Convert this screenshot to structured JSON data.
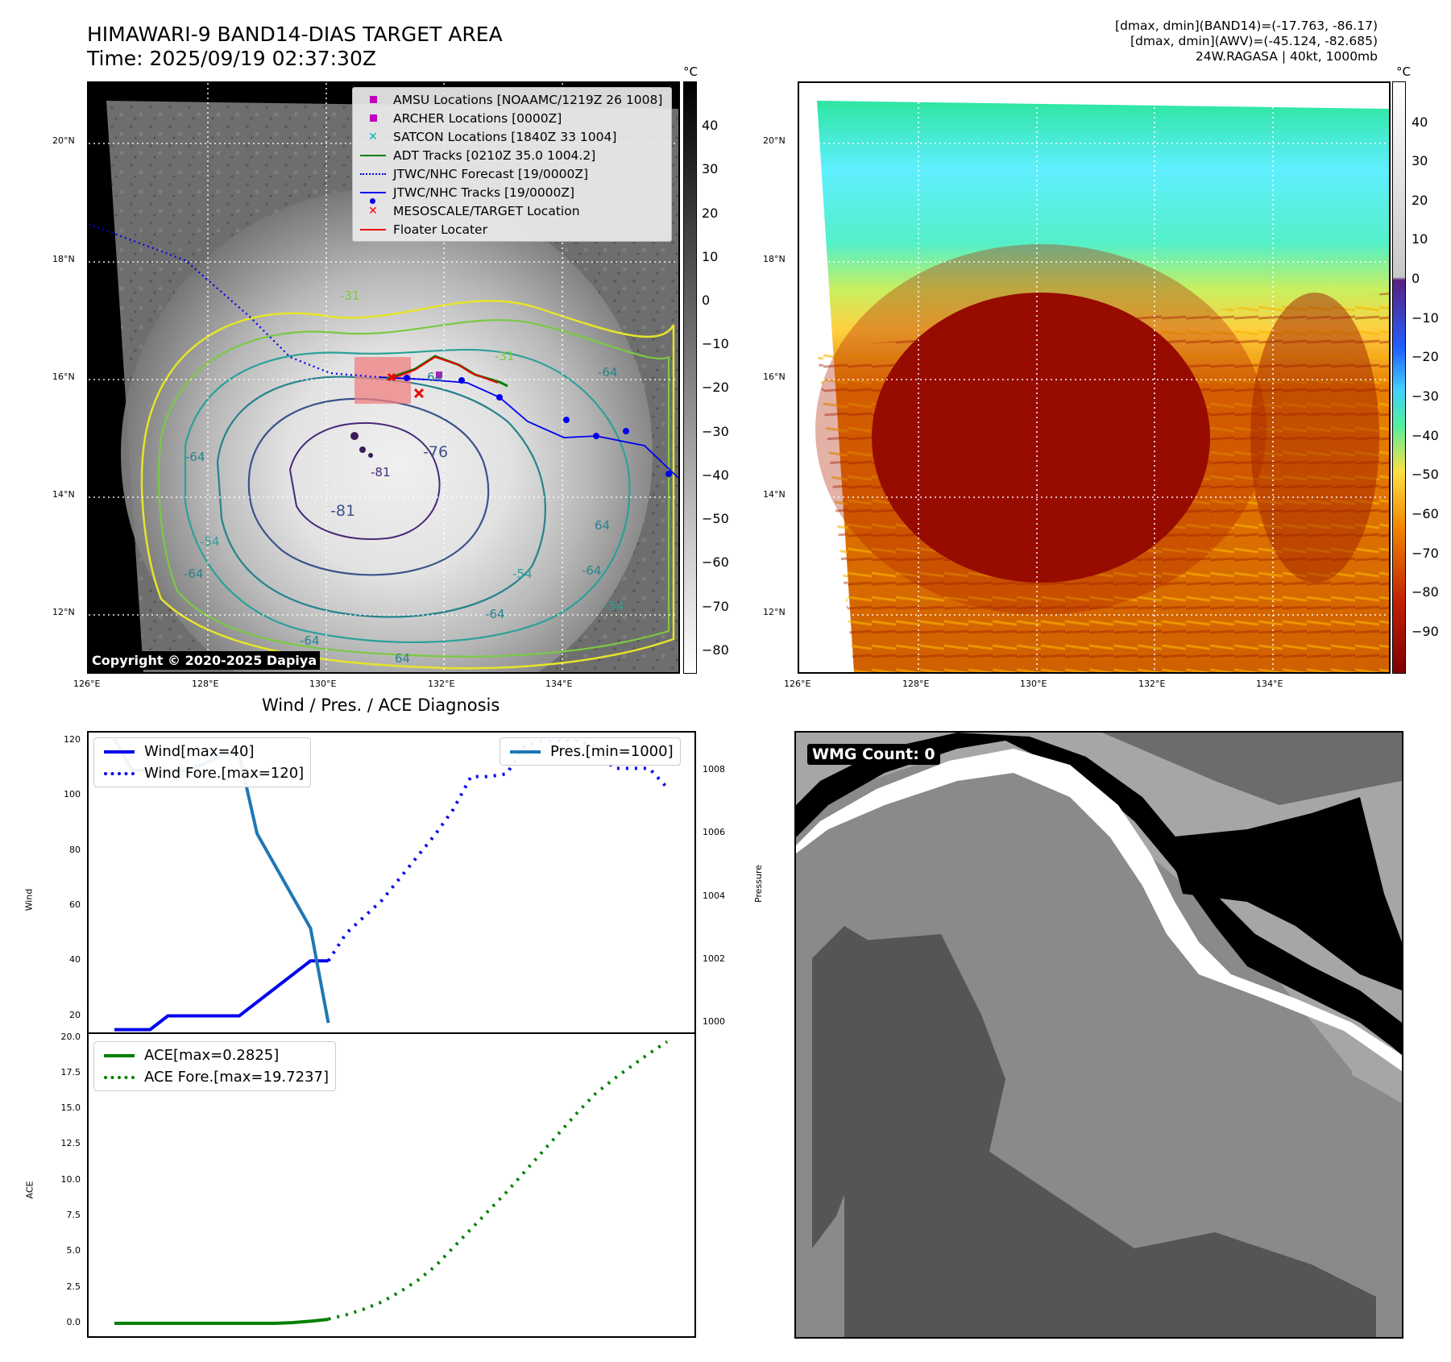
{
  "header": {
    "title_line1": "HIMAWARI-9 BAND14-DIAS TARGET AREA",
    "title_line2": "Time: 2025/09/19 02:37:30Z",
    "stats_line1": "[dmax, dmin](BAND14)=(-17.763, -86.17)",
    "stats_line2": "[dmax, dmin](AWV)=(-45.124, -82.685)",
    "stats_line3": "24W.RAGASA | 40kt, 1000mb"
  },
  "map": {
    "lon_ticks": [
      "126°E",
      "128°E",
      "130°E",
      "132°E",
      "134°E"
    ],
    "lat_ticks": [
      "20°N",
      "18°N",
      "16°N",
      "14°N",
      "12°N"
    ],
    "copyright": "Copyright © 2020-2025 Dapiya",
    "contour_labels": [
      "-76",
      "-81",
      "-81",
      "-64",
      "-64",
      "64",
      "-54",
      "-64",
      "64",
      "-64",
      "-31",
      "-31",
      "-54",
      "-64",
      "-64",
      "-54",
      "64"
    ],
    "legend": [
      {
        "label": "AMSU Locations [NOAAMC/1219Z 26 1008]",
        "symbol": "square",
        "color": "#c000c0"
      },
      {
        "label": "ARCHER Locations [0000Z]",
        "symbol": "square",
        "color": "#c000c0"
      },
      {
        "label": "SATCON Locations [1840Z 33 1004]",
        "symbol": "x",
        "color": "#00b4b4"
      },
      {
        "label": "ADT Tracks [0210Z 35.0 1004.2]",
        "symbol": "line",
        "color": "#008000"
      },
      {
        "label": "JTWC/NHC Forecast [19/0000Z]",
        "symbol": "dotted",
        "color": "#0000ee"
      },
      {
        "label": "JTWC/NHC Tracks [19/0000Z]",
        "symbol": "line-dot",
        "color": "#0000ee"
      },
      {
        "label": "MESOSCALE/TARGET Location",
        "symbol": "x",
        "color": "#ee0000"
      },
      {
        "label": "Floater Locater",
        "symbol": "line",
        "color": "#ee0000"
      }
    ]
  },
  "colorbar_left": {
    "unit": "°C",
    "labels": [
      "40",
      "30",
      "20",
      "10",
      "0",
      "−10",
      "−20",
      "−30",
      "−40",
      "−50",
      "−60",
      "−70",
      "−80"
    ]
  },
  "colorbar_right": {
    "unit": "°C",
    "labels": [
      "40",
      "30",
      "20",
      "10",
      "0",
      "−10",
      "−20",
      "−30",
      "−40",
      "−50",
      "−60",
      "−70",
      "−80",
      "−90"
    ]
  },
  "diag": {
    "title": "Wind / Pres. / ACE Diagnosis",
    "wind_ylabel": "Wind",
    "pres_ylabel": "Pressure",
    "ace_ylabel": "ACE",
    "wind_ticks": [
      "120",
      "100",
      "80",
      "60",
      "40",
      "20"
    ],
    "pres_ticks": [
      "1008",
      "1006",
      "1004",
      "1002",
      "1000"
    ],
    "ace_ticks": [
      "20.0",
      "17.5",
      "15.0",
      "12.5",
      "10.0",
      "7.5",
      "5.0",
      "2.5",
      "0.0"
    ],
    "legend_wind": "Wind[max=40]",
    "legend_wind_fore": "Wind Fore.[max=120]",
    "legend_pres": "Pres.[min=1000]",
    "legend_ace": "ACE[max=0.2825]",
    "legend_ace_fore": "ACE Fore.[max=19.7237]",
    "colors": {
      "wind": "#0000ee",
      "pres": "#1f77b4",
      "ace": "#008000"
    }
  },
  "wmg": {
    "label": "WMG Count: 0"
  },
  "chart_data": [
    {
      "type": "line",
      "title": "Wind / Pres. / ACE Diagnosis",
      "ylabel": "Wind",
      "ylim": [
        14,
        123
      ],
      "series": [
        {
          "name": "Wind[max=40]",
          "style": "solid",
          "x": [
            0,
            1,
            2,
            3,
            4,
            5,
            6,
            7,
            8,
            9,
            10,
            11,
            12
          ],
          "values": [
            15,
            15,
            15,
            20,
            20,
            20,
            20,
            20,
            25,
            30,
            35,
            40,
            40
          ]
        },
        {
          "name": "Wind Fore.[max=120]",
          "style": "dotted",
          "x": [
            12,
            13,
            14,
            15,
            16,
            17,
            18,
            19,
            20,
            21,
            22,
            23,
            24,
            25,
            26,
            27,
            28,
            29,
            30,
            31
          ],
          "values": [
            40,
            50,
            56,
            62,
            70,
            78,
            86,
            95,
            107,
            107,
            108,
            118,
            120,
            120,
            120,
            118,
            110,
            110,
            110,
            103
          ]
        }
      ]
    },
    {
      "type": "line",
      "ylabel": "Pressure",
      "ylim": [
        999.7,
        1009.2
      ],
      "series": [
        {
          "name": "Pres.[min=1000]",
          "style": "solid",
          "x": [
            0,
            1,
            2,
            3,
            4,
            5,
            6,
            7,
            8,
            9,
            10,
            11,
            12
          ],
          "values": [
            1009,
            1008,
            1008,
            1008,
            1008,
            1008.2,
            1008.5,
            1008.5,
            1006,
            1005,
            1004,
            1003,
            1000
          ]
        }
      ]
    },
    {
      "type": "line",
      "ylabel": "ACE",
      "ylim": [
        -0.9,
        20.2
      ],
      "series": [
        {
          "name": "ACE[max=0.2825]",
          "style": "solid",
          "x": [
            0,
            3,
            6,
            9,
            10,
            11,
            12
          ],
          "values": [
            0,
            0,
            0,
            0,
            0.05,
            0.15,
            0.28
          ]
        },
        {
          "name": "ACE Fore.[max=19.7237]",
          "style": "dotted",
          "x": [
            12,
            13,
            14,
            15,
            16,
            17,
            18,
            19,
            20,
            21,
            22,
            23,
            24,
            25,
            26,
            27,
            28,
            29,
            30,
            31
          ],
          "values": [
            0.3,
            0.6,
            1.0,
            1.5,
            2.2,
            3.0,
            4.0,
            5.3,
            6.6,
            7.9,
            9.2,
            10.6,
            12.0,
            13.4,
            14.8,
            16.1,
            17.1,
            18.0,
            18.9,
            19.72
          ]
        }
      ]
    }
  ]
}
